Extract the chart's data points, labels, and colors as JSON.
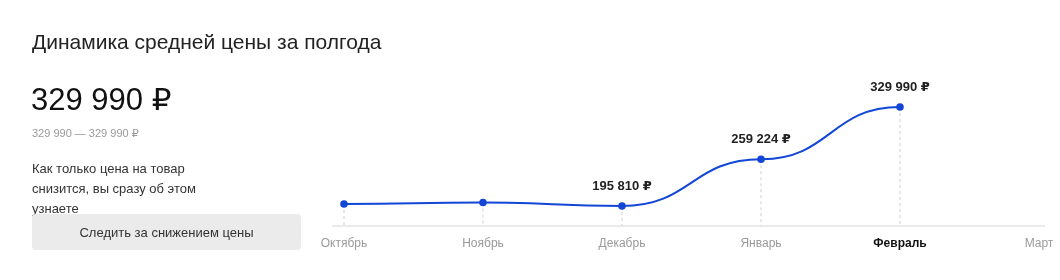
{
  "chart_data": {
    "type": "line",
    "title": "Динамика средней цены за полгода",
    "categories": [
      "Октябрь",
      "Ноябрь",
      "Декабрь",
      "Январь",
      "Февраль",
      "Март"
    ],
    "series": [
      {
        "color": "#1246d6",
        "values": [
          198500,
          200500,
          195810,
          259224,
          329990,
          null
        ],
        "value_labels": [
          null,
          null,
          "195 810 ₽",
          "259 224 ₽",
          "329 990 ₽",
          null
        ]
      }
    ],
    "tick_labels": "x",
    "marker": "circle",
    "line_style": "solid",
    "grid": "x",
    "annotations": [
      "329 990 ₽",
      "329 990 — 329 990 ₽",
      "Как только цена на товар снизится, вы сразу об этом узнаете",
      "Следить за снижением цены"
    ]
  }
}
